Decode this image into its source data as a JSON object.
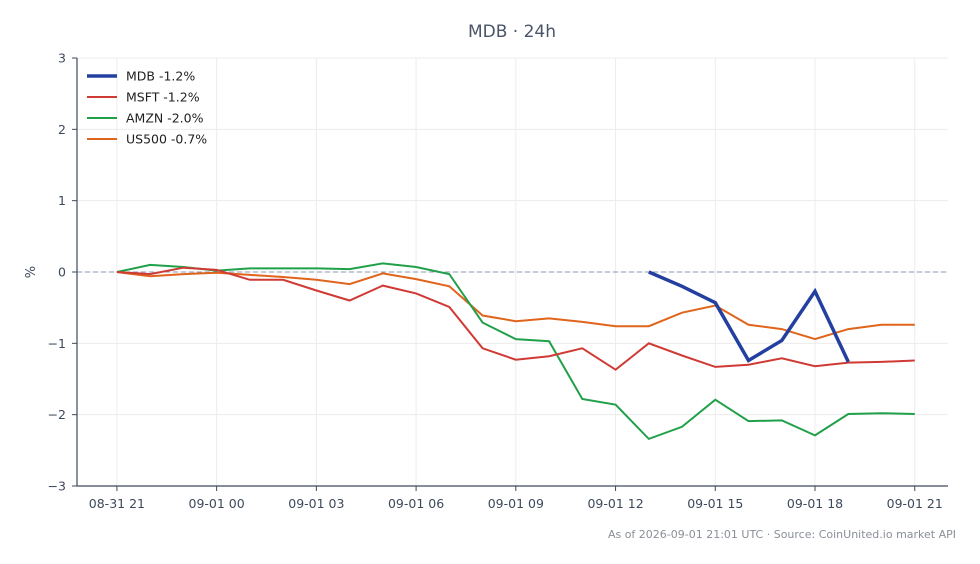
{
  "chart_data": {
    "type": "line",
    "title": "MDB · 24h",
    "ylabel": "%",
    "xlabel": "",
    "ylim": [
      -3,
      3
    ],
    "y_ticks": [
      3,
      2,
      1,
      0,
      -1,
      -2,
      -3
    ],
    "y_tick_labels": [
      "3",
      "2",
      "1",
      "0",
      "−1",
      "−2",
      "−3"
    ],
    "x_ticks": [
      0,
      3,
      6,
      9,
      12,
      15,
      18,
      21,
      24
    ],
    "x_tick_labels": [
      "08-31 21",
      "09-01 00",
      "09-01 03",
      "09-01 06",
      "09-01 09",
      "09-01 12",
      "09-01 15",
      "09-01 18",
      "09-01 21"
    ],
    "xlim": [
      -1.2,
      25
    ],
    "grid": true,
    "zero_line": true,
    "legend_position": "top-left",
    "series": [
      {
        "name": "MDB -1.2%",
        "color": "#2340a0",
        "width": 3.5,
        "x": [
          16,
          17,
          18,
          19,
          20,
          21,
          22
        ],
        "y": [
          0.0,
          -0.2,
          -0.43,
          -1.24,
          -0.96,
          -0.27,
          -1.26
        ]
      },
      {
        "name": "MSFT -1.2%",
        "color": "#d03a34",
        "width": 2,
        "x": [
          0,
          1,
          2,
          3,
          4,
          5,
          6,
          7,
          8,
          9,
          10,
          11,
          12,
          13,
          14,
          15,
          16,
          17,
          18,
          19,
          20,
          21,
          22,
          23,
          24
        ],
        "y": [
          0.0,
          -0.03,
          0.06,
          0.03,
          -0.11,
          -0.11,
          -0.26,
          -0.4,
          -0.19,
          -0.3,
          -0.49,
          -1.07,
          -1.23,
          -1.18,
          -1.07,
          -1.37,
          -1.0,
          -1.17,
          -1.33,
          -1.3,
          -1.21,
          -1.32,
          -1.27,
          -1.26,
          -1.24
        ]
      },
      {
        "name": "AMZN -2.0%",
        "color": "#21a04a",
        "width": 2,
        "x": [
          0,
          1,
          2,
          3,
          4,
          5,
          6,
          7,
          8,
          9,
          10,
          11,
          12,
          13,
          14,
          15,
          16,
          17,
          18,
          19,
          20,
          21,
          22,
          23,
          24
        ],
        "y": [
          0.0,
          0.1,
          0.07,
          0.02,
          0.05,
          0.05,
          0.05,
          0.04,
          0.12,
          0.07,
          -0.03,
          -0.71,
          -0.94,
          -0.97,
          -1.78,
          -1.86,
          -2.34,
          -2.17,
          -1.79,
          -2.09,
          -2.08,
          -2.29,
          -1.99,
          -1.98,
          -1.99
        ]
      },
      {
        "name": "US500 -0.7%",
        "color": "#e0641c",
        "width": 2,
        "x": [
          0,
          1,
          2,
          3,
          4,
          5,
          6,
          7,
          8,
          9,
          10,
          11,
          12,
          13,
          14,
          15,
          16,
          17,
          18,
          19,
          20,
          21,
          22,
          23,
          24
        ],
        "y": [
          0.0,
          -0.06,
          -0.03,
          -0.01,
          -0.04,
          -0.07,
          -0.11,
          -0.17,
          -0.02,
          -0.1,
          -0.2,
          -0.61,
          -0.69,
          -0.65,
          -0.7,
          -0.76,
          -0.76,
          -0.57,
          -0.47,
          -0.74,
          -0.8,
          -0.94,
          -0.8,
          -0.74,
          -0.74
        ]
      }
    ]
  },
  "footer": "As of 2026-09-01 21:01 UTC · Source: CoinUnited.io market API",
  "colors": {
    "axis": "#3d4a5c",
    "grid": "#ececec",
    "zero_line": "#8a98b0"
  }
}
